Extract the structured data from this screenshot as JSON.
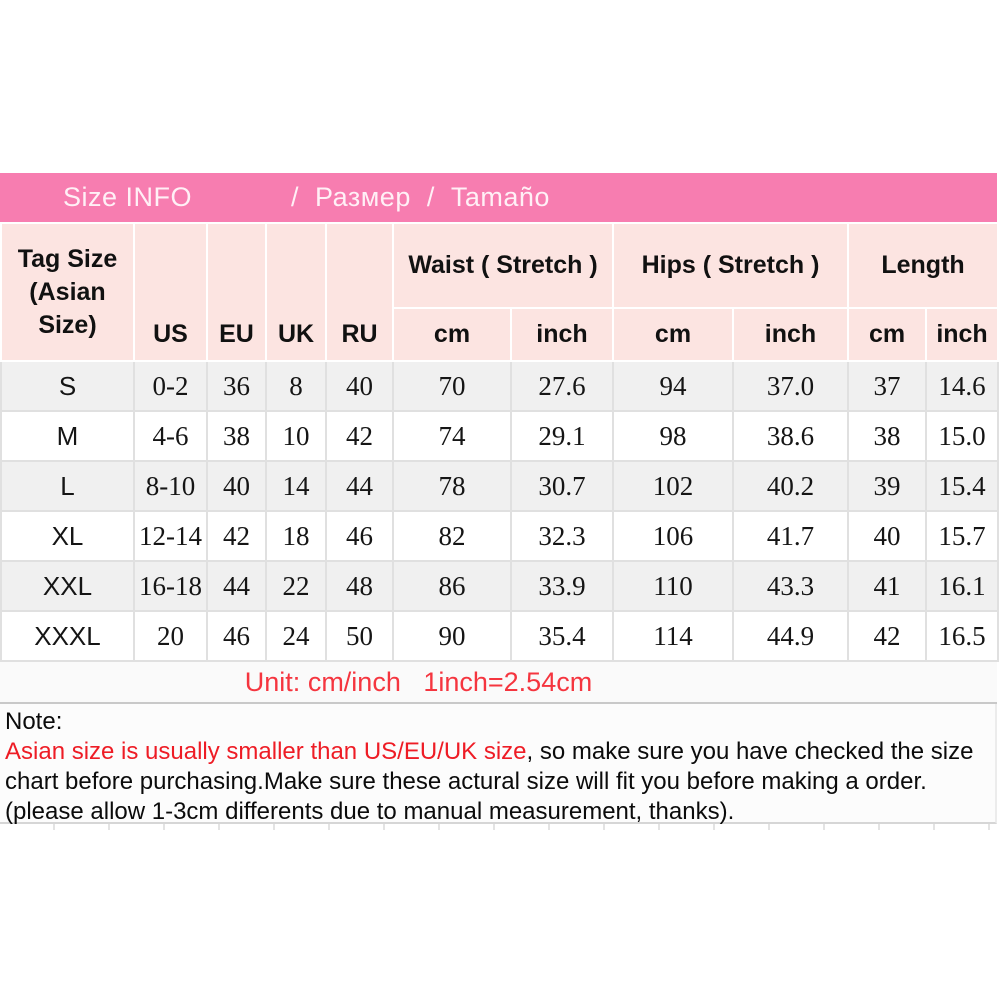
{
  "colors": {
    "pink_bar": "#f77db0",
    "header_pink": "#fce4e1",
    "alt_row": "#f0f0f0",
    "red_unit": "#f5353f",
    "red_note": "#ee1c25",
    "border": "#e0e0e0"
  },
  "title_bar": {
    "left": "Size INFO",
    "right": "/  Размер  /  Tamaño"
  },
  "table": {
    "col_headers": {
      "tag_size": "Tag Size\n(Asian\nSize)",
      "us": "US",
      "eu": "EU",
      "uk": "UK",
      "ru": "RU",
      "waist": "Waist ( Stretch )",
      "hips": "Hips ( Stretch )",
      "length": "Length",
      "cm": "cm",
      "inch": "inch"
    }
  },
  "chart_data": {
    "type": "table",
    "title": "Size INFO / Размер / Tamaño",
    "columns": [
      "Tag Size (Asian Size)",
      "US",
      "EU",
      "UK",
      "RU",
      "Waist (Stretch) cm",
      "Waist (Stretch) inch",
      "Hips (Stretch) cm",
      "Hips (Stretch) inch",
      "Length cm",
      "Length inch"
    ],
    "rows": [
      [
        "S",
        "0-2",
        "36",
        "8",
        "40",
        "70",
        "27.6",
        "94",
        "37.0",
        "37",
        "14.6"
      ],
      [
        "M",
        "4-6",
        "38",
        "10",
        "42",
        "74",
        "29.1",
        "98",
        "38.6",
        "38",
        "15.0"
      ],
      [
        "L",
        "8-10",
        "40",
        "14",
        "44",
        "78",
        "30.7",
        "102",
        "40.2",
        "39",
        "15.4"
      ],
      [
        "XL",
        "12-14",
        "42",
        "18",
        "46",
        "82",
        "32.3",
        "106",
        "41.7",
        "40",
        "15.7"
      ],
      [
        "XXL",
        "16-18",
        "44",
        "22",
        "48",
        "86",
        "33.9",
        "110",
        "43.3",
        "41",
        "16.1"
      ],
      [
        "XXXL",
        "20",
        "46",
        "24",
        "50",
        "90",
        "35.4",
        "114",
        "44.9",
        "42",
        "16.5"
      ]
    ]
  },
  "unit_note": {
    "text": "Unit: cm/inch   1inch=2.54cm"
  },
  "note": {
    "label": "Note:",
    "red_text": "Asian size is usually smaller than US/EU/UK size",
    "black_text": ", so make sure you have checked the size chart before purchasing.Make sure these actural size will fit you before making a order.(please allow 1-3cm differents due to manual measurement, thanks)."
  }
}
